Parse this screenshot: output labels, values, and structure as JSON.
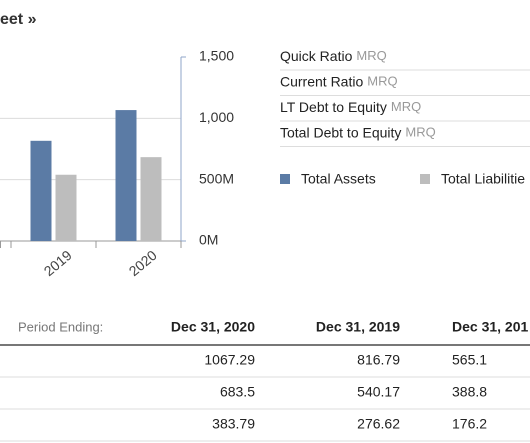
{
  "header": {
    "title": "eet »"
  },
  "chart_data": {
    "type": "bar",
    "categories": [
      "2019",
      "2020"
    ],
    "series": [
      {
        "name": "Total Assets",
        "color": "#5b7ba5",
        "values": [
          816.79,
          1067.29
        ]
      },
      {
        "name": "Total Liabilitie",
        "color": "#bdbdbd",
        "values": [
          540.17,
          683.5
        ]
      }
    ],
    "ylim": [
      0,
      1500
    ],
    "yticks": [
      {
        "value": 0,
        "label": "0M"
      },
      {
        "value": 500,
        "label": "500M"
      },
      {
        "value": 1000,
        "label": "1,000"
      },
      {
        "value": 1500,
        "label": "1,500"
      }
    ],
    "grid": true
  },
  "ratios": [
    {
      "label": "Quick Ratio",
      "period": "MRQ"
    },
    {
      "label": "Current Ratio",
      "period": "MRQ"
    },
    {
      "label": "LT Debt to Equity",
      "period": "MRQ"
    },
    {
      "label": "Total Debt to Equity",
      "period": "MRQ"
    }
  ],
  "table": {
    "header": [
      "Period Ending:",
      "Dec 31, 2020",
      "Dec 31, 2019",
      "Dec 31, 201"
    ],
    "rows": [
      [
        "1067.29",
        "816.79",
        "565.1"
      ],
      [
        "683.5",
        "540.17",
        "388.8"
      ],
      [
        "383.79",
        "276.62",
        "176.2"
      ]
    ]
  }
}
